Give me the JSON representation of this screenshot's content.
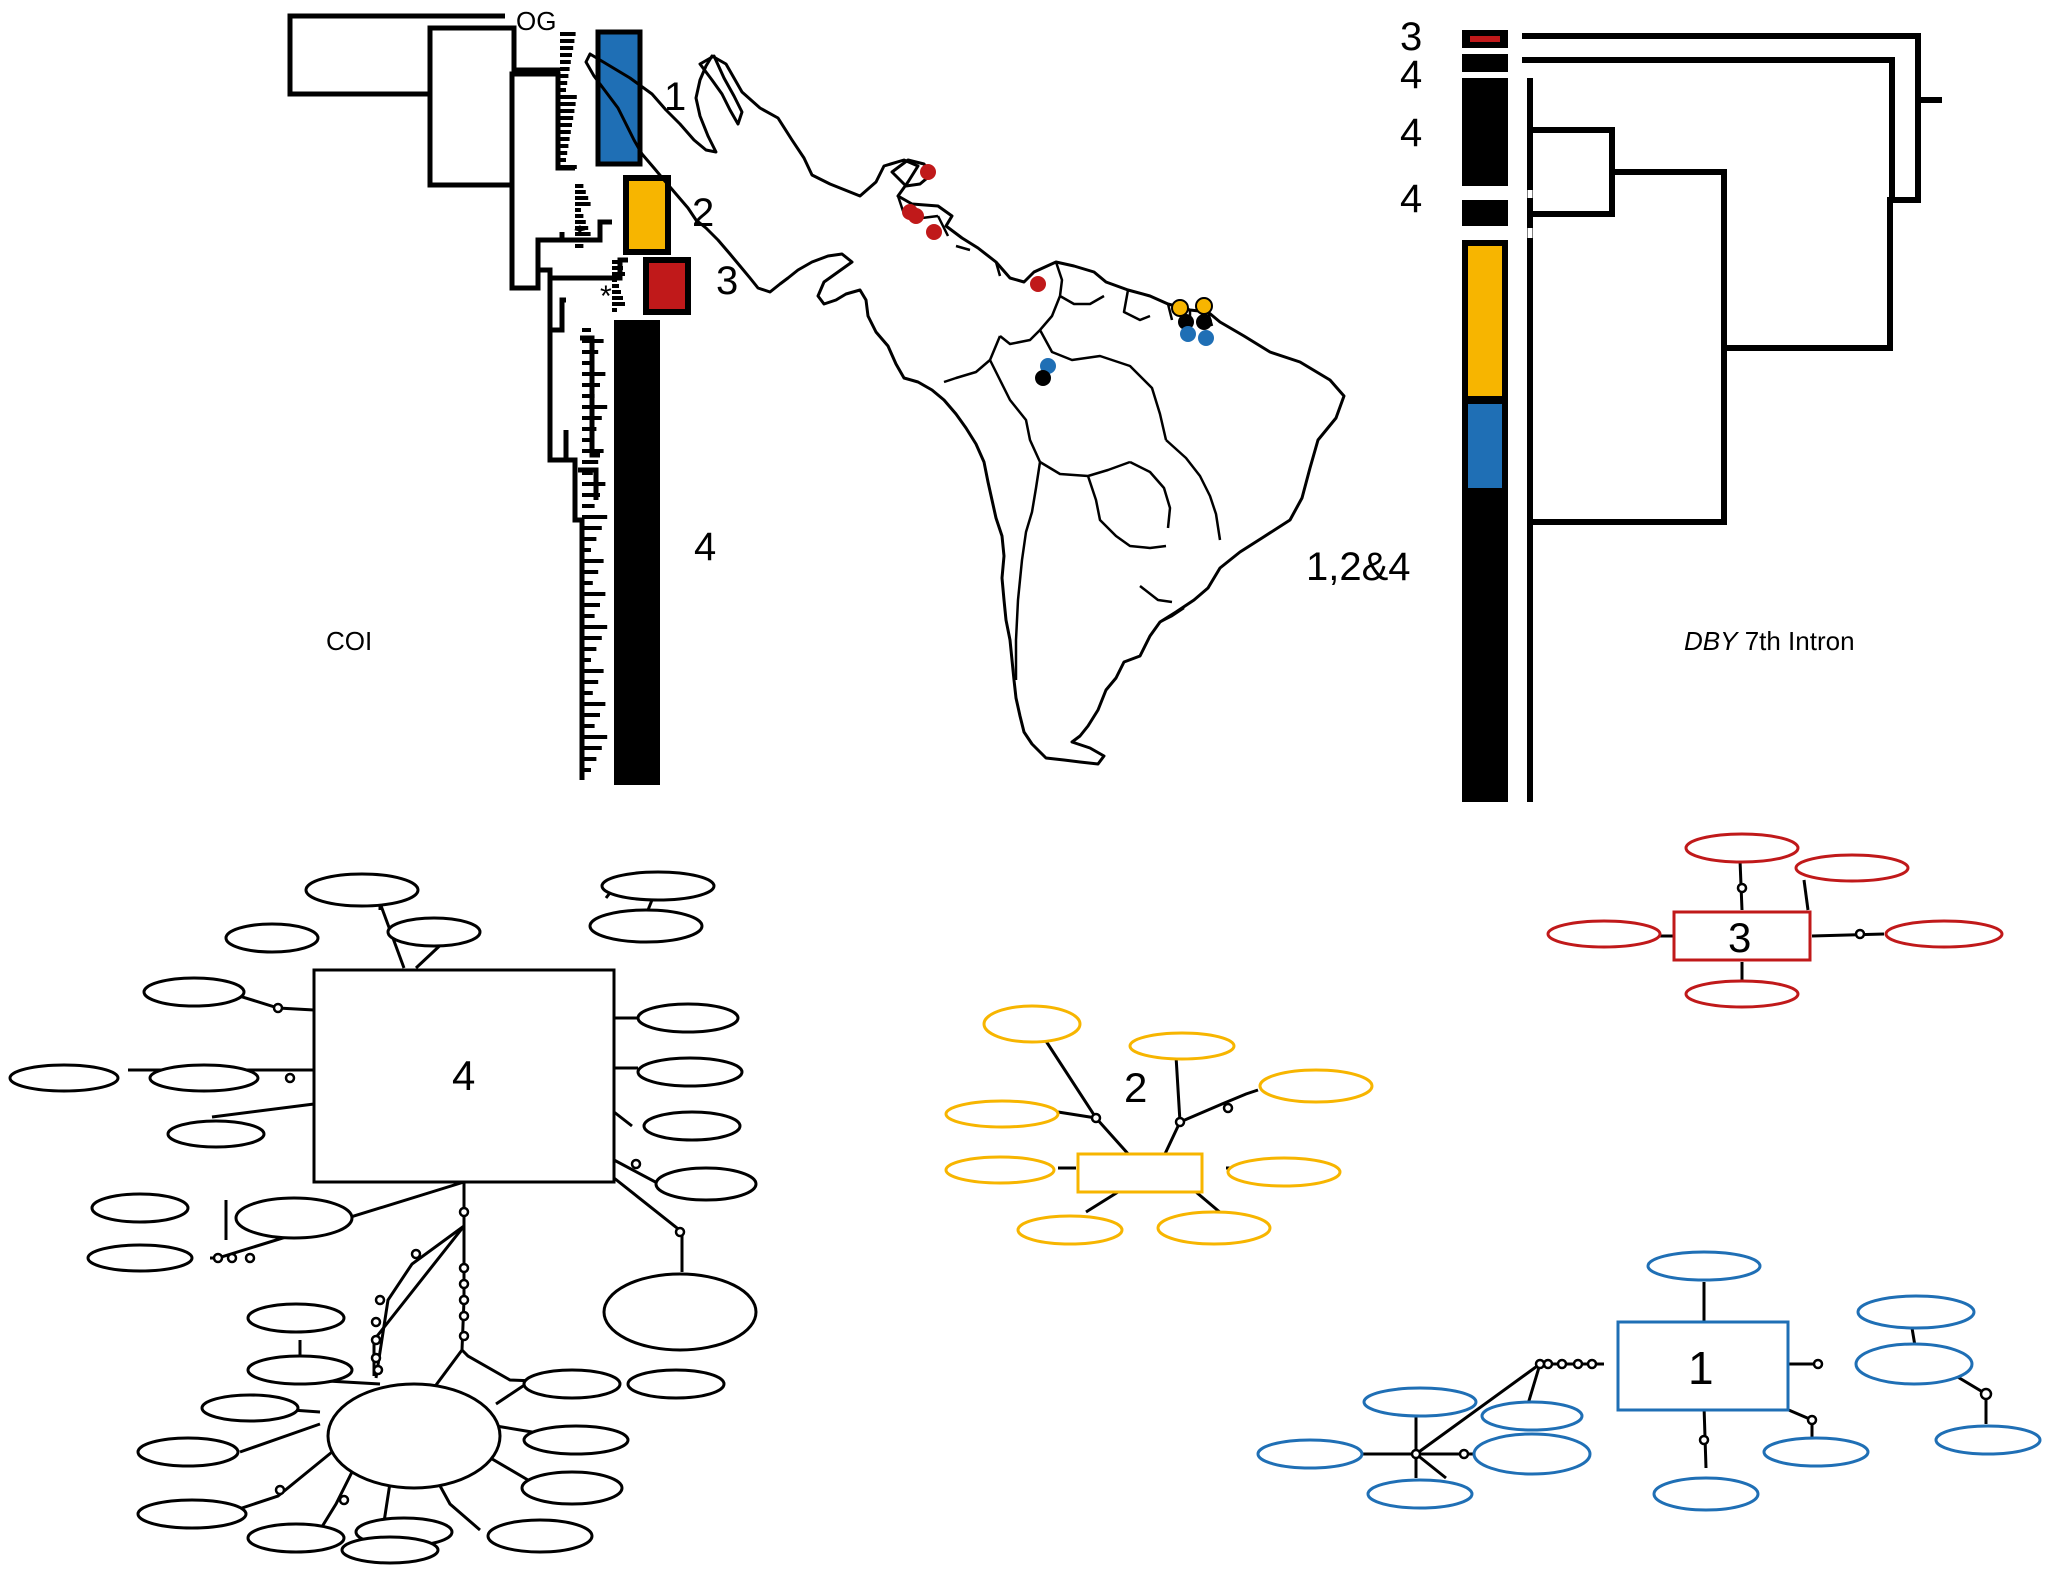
{
  "colors": {
    "clade1": "#1f6fb5",
    "clade2": "#f7b500",
    "clade3": "#c0191a",
    "clade4": "#000000",
    "line": "#000000",
    "map_outline": "#000000"
  },
  "coi_tree": {
    "outgroup_label": "OG",
    "caption": "COI",
    "clades": [
      {
        "label": "1",
        "color": "#1f6fb5"
      },
      {
        "label": "2",
        "color": "#f7b500"
      },
      {
        "label": "3",
        "color": "#c0191a"
      },
      {
        "label": "4",
        "color": "#000000"
      }
    ],
    "support_marks": [
      "*",
      "*"
    ]
  },
  "map": {
    "overlap_label": "1,2&4",
    "sample_sites": [
      {
        "clade": "3"
      },
      {
        "clade": "3"
      },
      {
        "clade": "3"
      },
      {
        "clade": "3"
      },
      {
        "clade": "3"
      },
      {
        "clade": "1"
      },
      {
        "clade": "4"
      },
      {
        "clade": "2"
      },
      {
        "clade": "2"
      },
      {
        "clade": "4"
      },
      {
        "clade": "4"
      },
      {
        "clade": "1"
      },
      {
        "clade": "1"
      }
    ]
  },
  "dby_tree": {
    "caption_italic": "DBY",
    "caption_rest": " 7th Intron",
    "tip_labels": [
      "3",
      "4",
      "4",
      "4"
    ]
  },
  "networks": [
    {
      "label": "4",
      "color": "#000000"
    },
    {
      "label": "2",
      "color": "#f7b500"
    },
    {
      "label": "3",
      "color": "#c0191a"
    },
    {
      "label": "1",
      "color": "#1f6fb5"
    }
  ]
}
